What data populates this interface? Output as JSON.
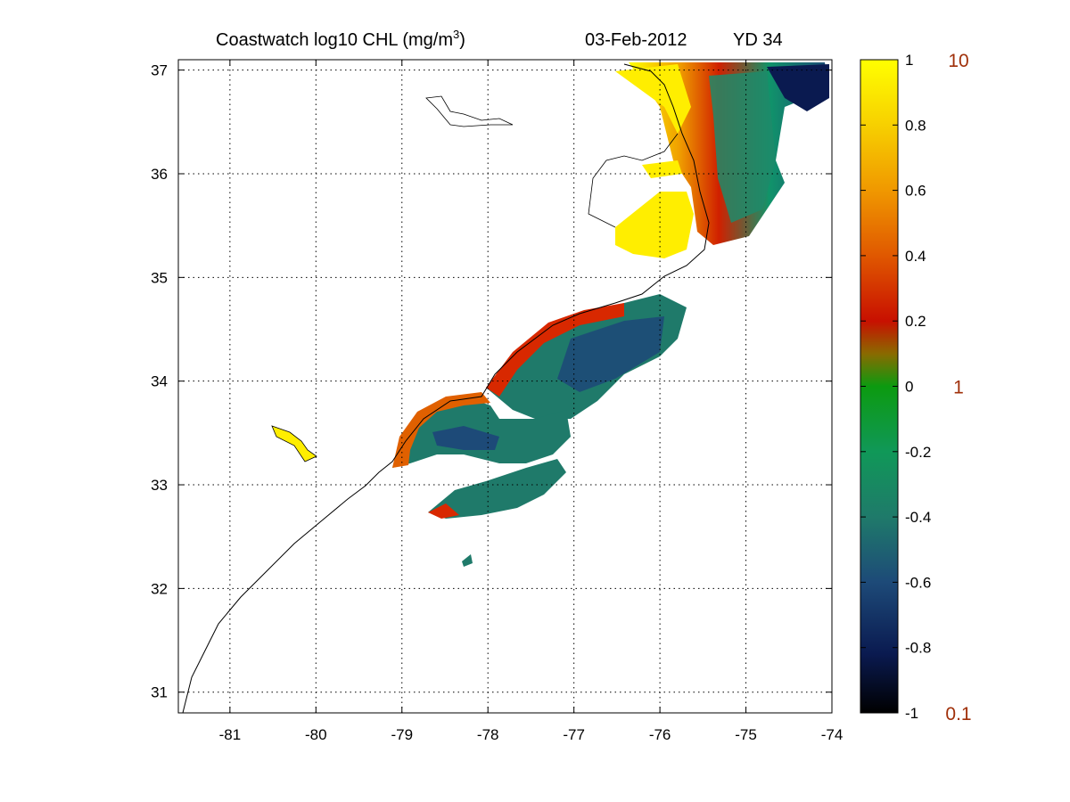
{
  "title": {
    "main": "Coastwatch  log10  CHL (mg/m",
    "superscript": "3",
    "close": ")",
    "date": "03-Feb-2012",
    "yearday": "YD 34"
  },
  "chart_data": {
    "type": "heatmap",
    "title": "Coastwatch  log10  CHL (mg/m3)   03-Feb-2012   YD 34",
    "xlabel": "",
    "ylabel": "",
    "xlim": [
      -81.6,
      -74.0
    ],
    "ylim": [
      30.8,
      37.1
    ],
    "x_ticks": [
      "-81",
      "-80",
      "-79",
      "-78",
      "-77",
      "-76",
      "-75",
      "-74"
    ],
    "x_tick_values": [
      -81,
      -80,
      -79,
      -78,
      -77,
      -76,
      -75,
      -74
    ],
    "y_ticks": [
      "31",
      "32",
      "33",
      "34",
      "35",
      "36",
      "37"
    ],
    "y_tick_values": [
      31,
      32,
      33,
      34,
      35,
      36,
      37
    ],
    "grid": true,
    "colorbar": {
      "range": [
        -1,
        1
      ],
      "ticks": [
        "1",
        "0.8",
        "0.6",
        "0.4",
        "0.2",
        "0",
        "-0.2",
        "-0.4",
        "-0.6",
        "-0.8",
        "-1"
      ],
      "tick_values": [
        1,
        0.8,
        0.6,
        0.4,
        0.2,
        0,
        -0.2,
        -0.4,
        -0.6,
        -0.8,
        -1
      ],
      "concentration_labels": [
        "10",
        "1",
        "0.1"
      ],
      "concentration_values": [
        1,
        0,
        -1
      ],
      "colors": [
        "#000000",
        "#0a1a50",
        "#1d4a78",
        "#1f7a6a",
        "#109858",
        "#0c9a10",
        "#8a6a00",
        "#c81000",
        "#e05800",
        "#f09800",
        "#f7d000",
        "#ffff00"
      ]
    },
    "description_fields": {
      "units": "log10 CHL (mg/m3)"
    }
  }
}
